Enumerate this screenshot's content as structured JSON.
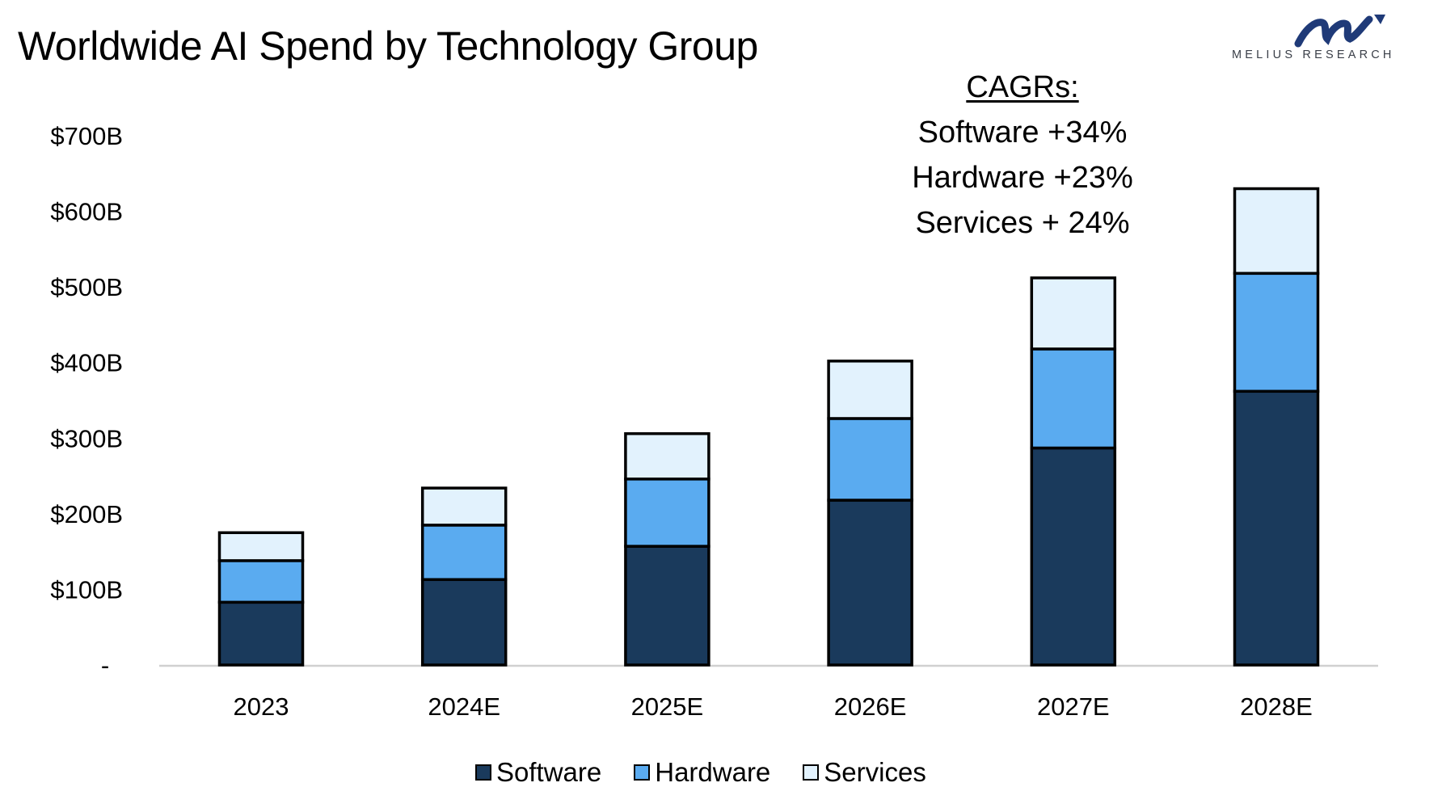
{
  "header": {
    "title": "Worldwide AI Spend by Technology Group",
    "logo_text": "MELIUS RESEARCH",
    "logo_icon": "melius-m-arrow-logo"
  },
  "annotation": {
    "heading": "CAGRs:",
    "lines": [
      "Software +34%",
      "Hardware +23%",
      "Services + 24%"
    ]
  },
  "colors": {
    "software": "#1a3a5c",
    "hardware": "#5aabf0",
    "services": "#e2f2fd",
    "outline": "#000000",
    "axis": "#d0d0d0",
    "logo": "#1f3a78"
  },
  "chart_data": {
    "type": "bar",
    "stacked": true,
    "title": "Worldwide AI Spend by Technology Group",
    "xlabel": "",
    "ylabel": "",
    "categories": [
      "2023",
      "2024E",
      "2025E",
      "2026E",
      "2027E",
      "2028E"
    ],
    "series": [
      {
        "name": "Software",
        "values": [
          83,
          113,
          157,
          218,
          287,
          362
        ]
      },
      {
        "name": "Hardware",
        "values": [
          55,
          72,
          89,
          108,
          131,
          156
        ]
      },
      {
        "name": "Services",
        "values": [
          37,
          49,
          60,
          76,
          94,
          112
        ]
      }
    ],
    "totals": [
      175,
      234,
      306,
      402,
      512,
      630
    ],
    "ylim": [
      0,
      700
    ],
    "yticks": [
      0,
      100,
      200,
      300,
      400,
      500,
      600,
      700
    ],
    "ytick_labels": [
      "-",
      "$100B",
      "$200B",
      "$300B",
      "$400B",
      "$500B",
      "$600B",
      "$700B"
    ],
    "grid": false,
    "legend": {
      "position": "bottom",
      "entries": [
        "Software",
        "Hardware",
        "Services"
      ]
    },
    "annotations": [
      "CAGRs:",
      "Software +34%",
      "Hardware +23%",
      "Services + 24%"
    ]
  }
}
